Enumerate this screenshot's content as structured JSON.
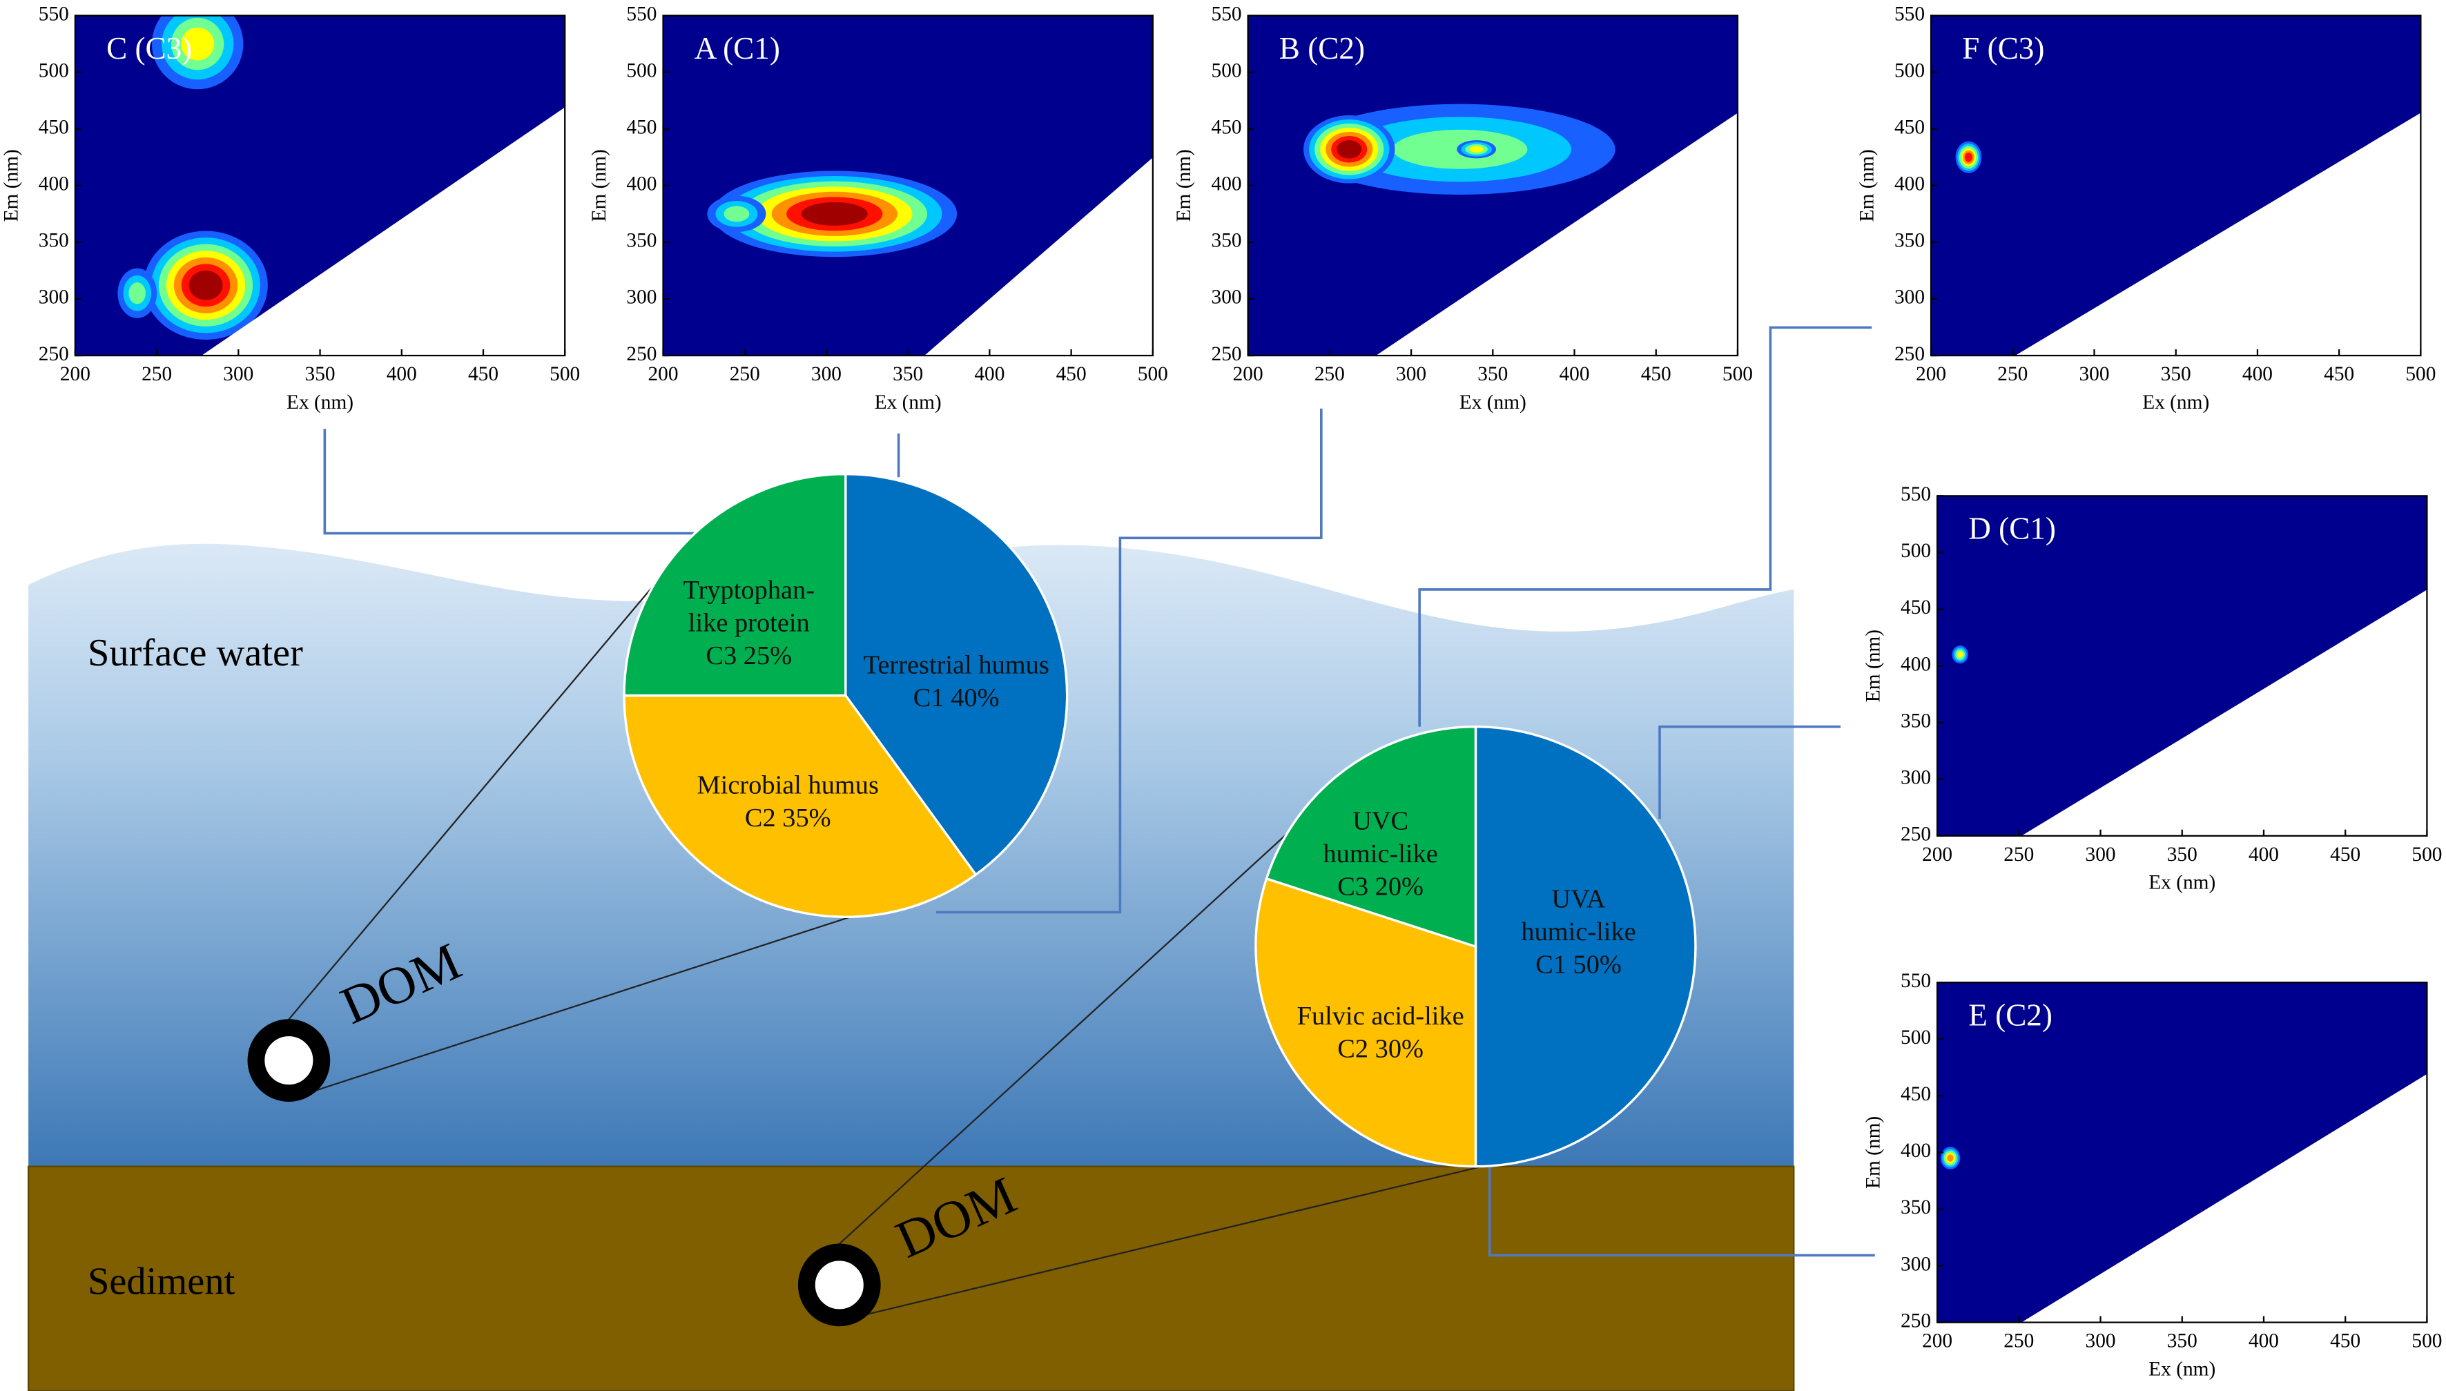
{
  "labels": {
    "surface_water": "Surface water",
    "sediment": "Sediment",
    "dom": "DOM"
  },
  "axes": {
    "xlabel": "Ex (nm)",
    "ylabel": "Em (nm)",
    "xlim": [
      200,
      500
    ],
    "xticks": [
      200,
      250,
      300,
      350,
      400,
      450,
      500
    ],
    "ylim": [
      250,
      550
    ],
    "yticks": [
      250,
      300,
      350,
      400,
      450,
      500,
      550
    ]
  },
  "panels": [
    {
      "title": "C (C3)"
    },
    {
      "title": "A (C1)"
    },
    {
      "title": "B (C2)"
    },
    {
      "title": "F (C3)"
    },
    {
      "title": "D (C1)"
    },
    {
      "title": "E (C2)"
    }
  ],
  "pies": [
    {
      "segments": [
        {
          "lines": [
            "Terrestrial humus",
            "C1 40%"
          ],
          "value": 40,
          "color": "#0070c0"
        },
        {
          "lines": [
            "Microbial humus",
            "C2 35%"
          ],
          "value": 35,
          "color": "#ffc000"
        },
        {
          "lines": [
            "Tryptophan-",
            "like protein",
            "C3 25%"
          ],
          "value": 25,
          "color": "#00b050"
        }
      ]
    },
    {
      "segments": [
        {
          "lines": [
            "UVA",
            "humic-like",
            "C1 50%"
          ],
          "value": 50,
          "color": "#0070c0"
        },
        {
          "lines": [
            "Fulvic acid-like",
            "C2 30%"
          ],
          "value": 30,
          "color": "#ffc000"
        },
        {
          "lines": [
            "UVC",
            "humic-like",
            "C3 20%"
          ],
          "value": 20,
          "color": "#00b050"
        }
      ]
    }
  ]
}
